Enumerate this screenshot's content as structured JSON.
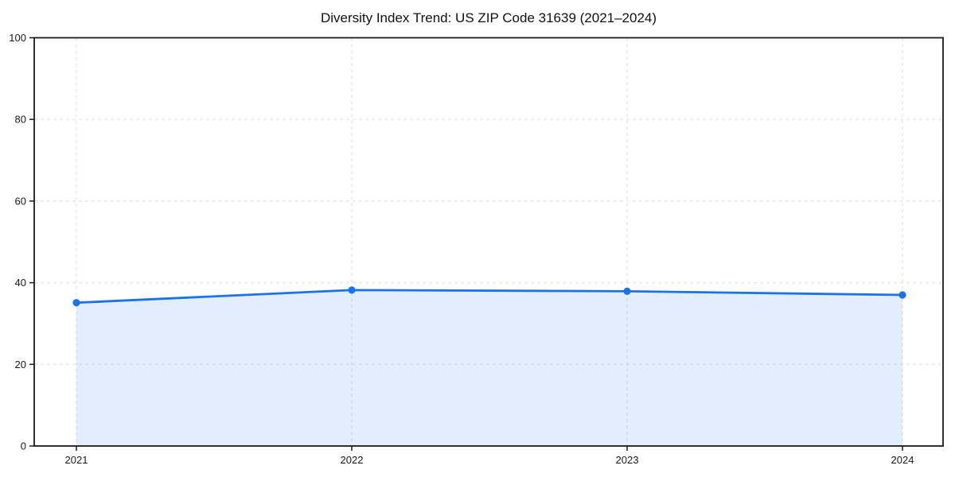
{
  "page": {
    "background": "#ffffff"
  },
  "chart_data": {
    "type": "area",
    "title": "Diversity Index Trend: US ZIP Code 31639 (2021–2024)",
    "x": [
      2021,
      2022,
      2023,
      2024
    ],
    "categories": [
      "2021",
      "2022",
      "2023",
      "2024"
    ],
    "series": [
      {
        "name": "Diversity Index",
        "values": [
          35.1,
          38.2,
          37.9,
          37.0
        ]
      }
    ],
    "xlabel": "",
    "ylabel": "",
    "ylim": [
      0,
      100
    ],
    "yticks": [
      0,
      20,
      40,
      60,
      80,
      100
    ],
    "grid": true,
    "grid_style": "dashed",
    "legend": "none",
    "colors": {
      "line": "#1a73e8",
      "marker": "#1a73e8",
      "fill_rgba": "rgba(26,115,232,0.12)",
      "grid": "#e2e2e2",
      "spine": "#1a1a1a",
      "tick_text": "#1a1a1a",
      "title_text": "#111111"
    }
  }
}
